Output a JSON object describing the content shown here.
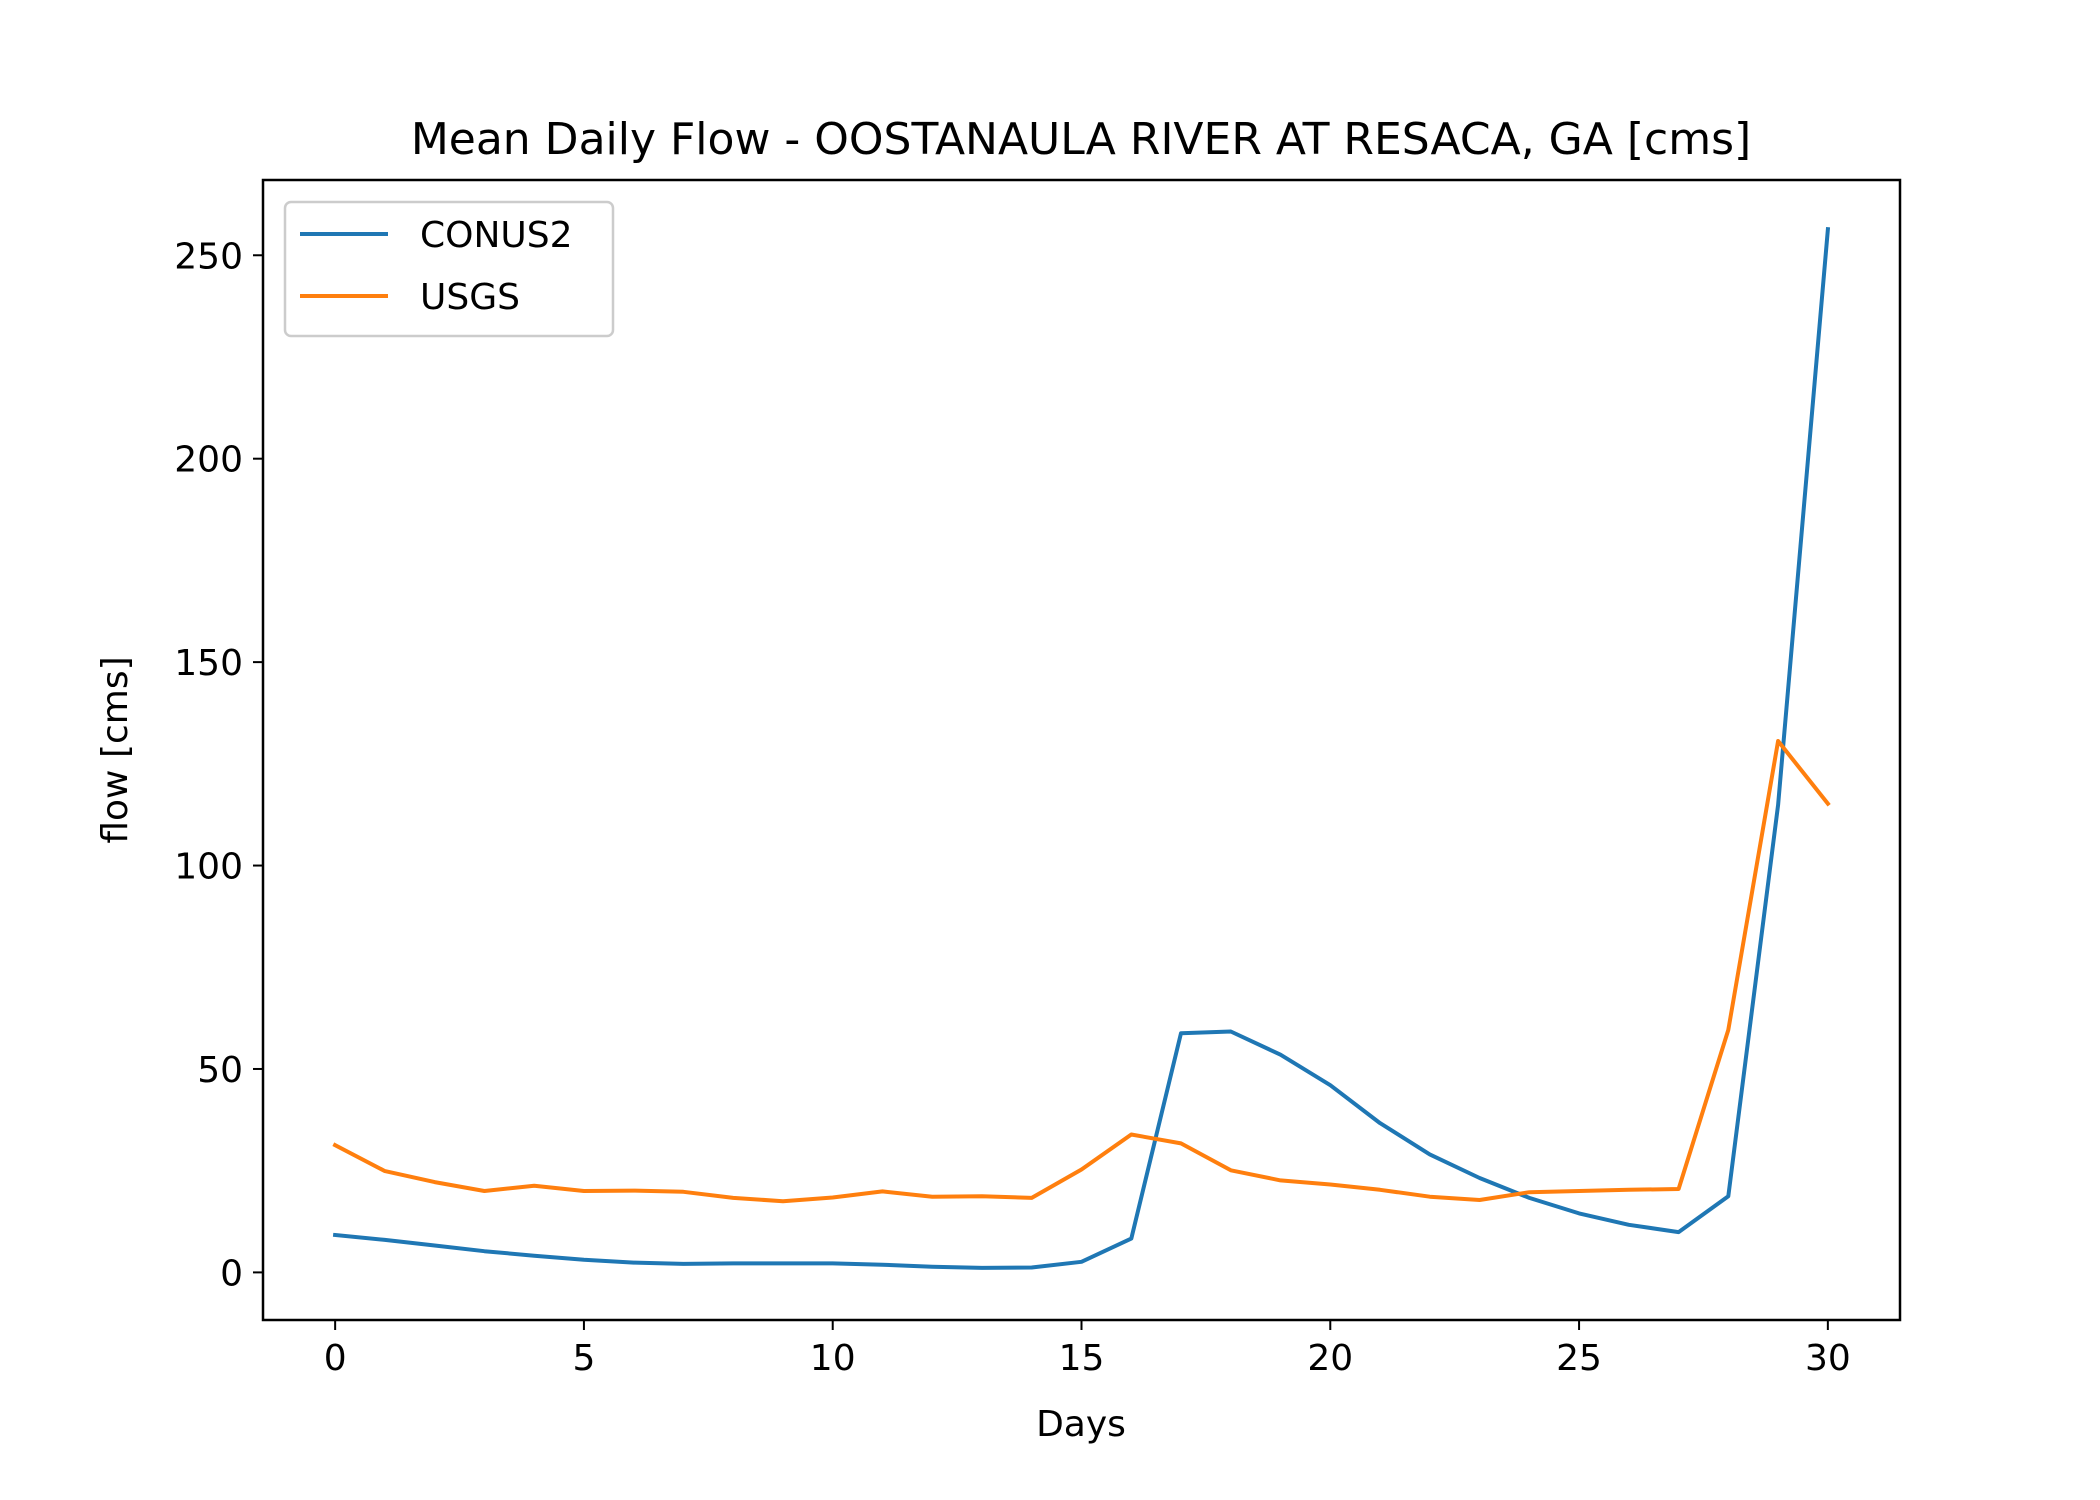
{
  "chart_data": {
    "type": "line",
    "title": "Mean Daily Flow - OOSTANAULA RIVER AT RESACA, GA [cms]",
    "xlabel": "Days",
    "ylabel": "flow [cms]",
    "xlim": [
      -1.45,
      31.45
    ],
    "ylim": [
      -11.7,
      268.5
    ],
    "xticks": [
      0,
      5,
      10,
      15,
      20,
      25,
      30
    ],
    "yticks": [
      0,
      50,
      100,
      150,
      200,
      250
    ],
    "grid": false,
    "legend_position": "top-left",
    "x": [
      0,
      1,
      2,
      3,
      4,
      5,
      6,
      7,
      8,
      9,
      10,
      11,
      12,
      13,
      14,
      15,
      16,
      17,
      18,
      19,
      20,
      21,
      22,
      23,
      24,
      25,
      26,
      27,
      28,
      29,
      30
    ],
    "series": [
      {
        "name": "CONUS2",
        "color": "#1f77b4",
        "values": [
          9.2,
          8.0,
          6.6,
          5.2,
          4.1,
          3.1,
          2.4,
          2.1,
          2.2,
          2.2,
          2.2,
          1.9,
          1.4,
          1.1,
          1.2,
          2.6,
          8.3,
          58.8,
          59.2,
          53.5,
          46.0,
          36.7,
          29.0,
          23.2,
          18.3,
          14.5,
          11.7,
          9.9,
          18.7,
          114.9,
          256.4
        ]
      },
      {
        "name": "USGS",
        "color": "#ff7f0e",
        "values": [
          31.3,
          24.9,
          22.2,
          20.0,
          21.3,
          20.0,
          20.1,
          19.8,
          18.3,
          17.5,
          18.4,
          19.9,
          18.6,
          18.7,
          18.3,
          25.3,
          33.9,
          31.7,
          25.1,
          22.6,
          21.6,
          20.3,
          18.6,
          17.8,
          19.7,
          20.0,
          20.3,
          20.5,
          59.6,
          130.6,
          115.2
        ]
      }
    ]
  }
}
